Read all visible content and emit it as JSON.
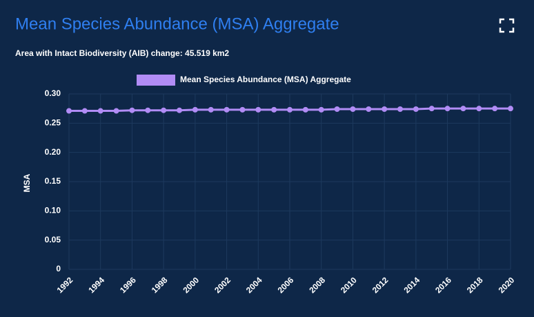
{
  "chart_data": {
    "type": "line",
    "title": "Mean Species Abundance (MSA) Aggregate",
    "subtitle": "Area with Intact Biodiversity (AIB) change: 45.519 km2",
    "y_label": "MSA",
    "x": [
      1992,
      1993,
      1994,
      1995,
      1996,
      1997,
      1998,
      1999,
      2000,
      2001,
      2002,
      2003,
      2004,
      2005,
      2006,
      2007,
      2008,
      2009,
      2010,
      2011,
      2012,
      2013,
      2014,
      2015,
      2016,
      2017,
      2018,
      2019,
      2020
    ],
    "series": [
      {
        "name": "Mean Species Abundance (MSA) Aggregate",
        "color": "#b18cf5",
        "values": [
          0.271,
          0.271,
          0.271,
          0.271,
          0.272,
          0.272,
          0.272,
          0.272,
          0.273,
          0.273,
          0.273,
          0.273,
          0.273,
          0.273,
          0.273,
          0.273,
          0.273,
          0.274,
          0.274,
          0.274,
          0.274,
          0.274,
          0.274,
          0.275,
          0.275,
          0.275,
          0.275,
          0.275,
          0.275
        ]
      }
    ],
    "xlim": [
      1992,
      2020
    ],
    "xticks": [
      1992,
      1994,
      1996,
      1998,
      2000,
      2002,
      2004,
      2006,
      2008,
      2010,
      2012,
      2014,
      2016,
      2018,
      2020
    ],
    "ylim": [
      0,
      0.3
    ],
    "yticks": [
      0,
      0.05,
      {
        "value": 0.1,
        "label": "0.10"
      },
      0.15,
      {
        "value": 0.2,
        "label": "0.20"
      },
      0.25,
      {
        "value": 0.3,
        "label": "0.30"
      }
    ],
    "grid": true,
    "legend": "top"
  }
}
